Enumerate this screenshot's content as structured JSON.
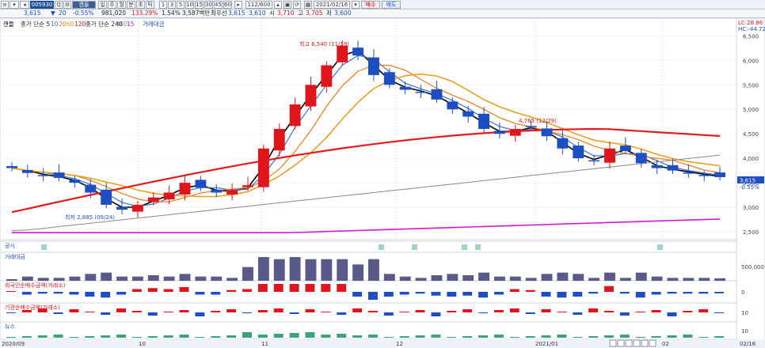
{
  "toolbar": {
    "stock_code": "005930",
    "period_buttons": [
      "1",
      "3",
      "5",
      "10",
      "15",
      "30",
      "45",
      "60"
    ],
    "page_counter": "112/600",
    "date": "2021/02/16",
    "buy_label": "매수",
    "sell_label": "매도",
    "type_labels": [
      "일",
      "주",
      "월",
      "분",
      "초",
      "틱"
    ],
    "chart_type_label": "캔들"
  },
  "quote": {
    "price": "3,615",
    "change": "20",
    "change_pct": "-0.55%",
    "volume": "981,020",
    "volume_pct": "133.29%",
    "ratio": "1.54%",
    "amount": "3,587백만",
    "kind_label": "최우선",
    "ask": "3,615",
    "bid": "3,610",
    "open_label": "시",
    "open": "3,710",
    "high_label": "고",
    "high": "3,705",
    "low_label": "저",
    "low": "3,600"
  },
  "price_panel": {
    "legend_main": "캔들",
    "legend_ma5": "종가 단순 5",
    "ma_periods_a": [
      "10",
      "20",
      "60",
      "120"
    ],
    "legend_ma240": "종가 단순 240",
    "ma_periods_b": [
      "480",
      "15"
    ],
    "volume_legend": "거래대금",
    "high_annotation": "최고 6,540 (11/19)",
    "low_annotation": "최저 2,885 (09/24)",
    "mid_annotation": "4,765 (12/29)",
    "right_tag_lc": "LC:28.86",
    "right_tag_hc": "HC:-44.72",
    "y_ticks": [
      "6,500",
      "6,000",
      "5,500",
      "5,000",
      "4,500",
      "4,000",
      "3,500",
      "3,000",
      "2,500"
    ],
    "current_price_tag": "3,615",
    "current_price_pct": "-0.55%"
  },
  "subpanels": [
    {
      "label": "공시",
      "scale": ""
    },
    {
      "label": "거래대금",
      "scale": "500,000"
    },
    {
      "label": "외국인순매수금액(거래소)",
      "scale": "0"
    },
    {
      "label": "기관순매수금액(거래소)",
      "scale": "10"
    },
    {
      "label": "뉴스",
      "scale": "10"
    }
  ],
  "x_axis": {
    "labels": [
      "2020/09",
      "10",
      "11",
      "12",
      "2021/01",
      "02"
    ],
    "end_label": "02/16"
  },
  "chart_data": {
    "type": "candlestick",
    "series_ma": [
      "5",
      "10",
      "20",
      "60",
      "120",
      "240",
      "480"
    ],
    "close_samples": [
      3800,
      3700,
      3650,
      3600,
      3500,
      3300,
      3050,
      2950,
      3050,
      3200,
      3300,
      3500,
      3400,
      3300,
      3350,
      3450,
      4200,
      4600,
      5100,
      5500,
      5900,
      6300,
      6100,
      5700,
      5500,
      5400,
      5350,
      5200,
      5000,
      4850,
      4600,
      4500,
      4600,
      4650,
      4450,
      4200,
      4000,
      3950,
      4200,
      4150,
      3900,
      3800,
      3750,
      3700,
      3650,
      3615
    ],
    "ylim": [
      2500,
      6700
    ]
  },
  "colors": {
    "up": "#e0151b",
    "down": "#1d4fc2",
    "ma5": "#000000",
    "ma10": "#3d6fe0",
    "ma20": "#f07a1a",
    "ma60": "#e8a020",
    "ma120": "#e31b1b",
    "ma240": "#888888",
    "ma480": "#d01ad0"
  }
}
